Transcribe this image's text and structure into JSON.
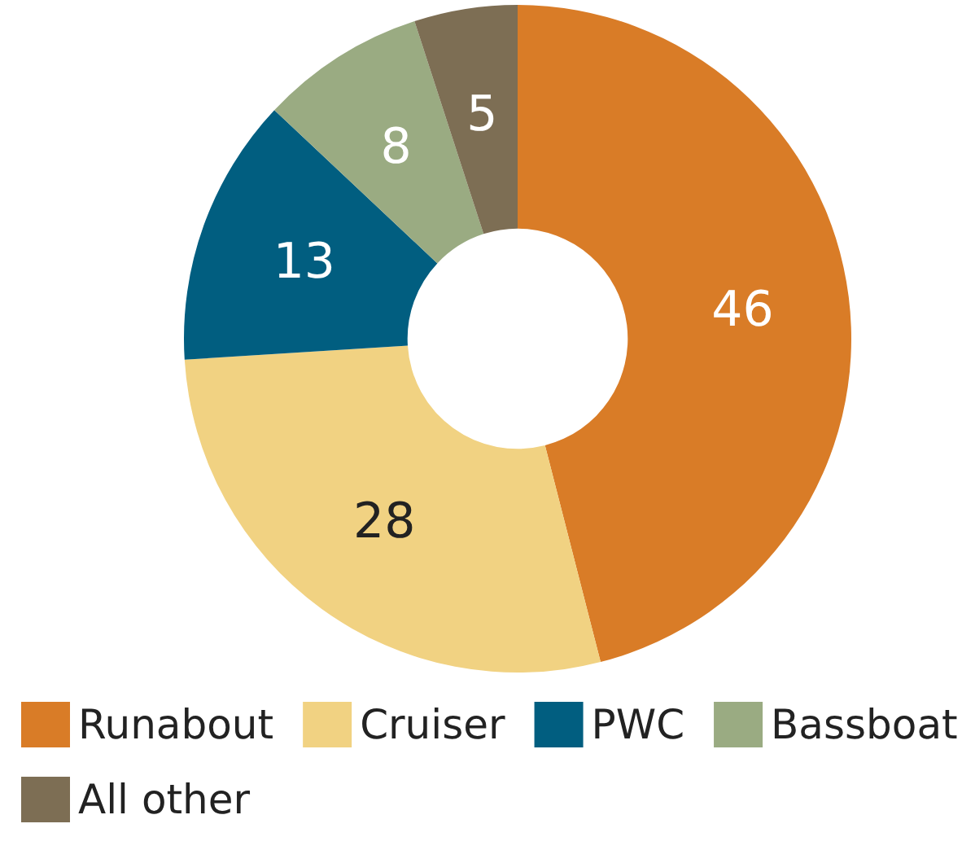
{
  "chart_data": {
    "type": "donut",
    "categories": [
      "Runabout",
      "Cruiser",
      "PWC",
      "Bassboat",
      "All other"
    ],
    "values": [
      46,
      28,
      13,
      8,
      5
    ],
    "colors": [
      "#d97c27",
      "#f1d282",
      "#015e80",
      "#9aab82",
      "#7d6e54"
    ],
    "data_labels": true,
    "legend": "bottom"
  }
}
